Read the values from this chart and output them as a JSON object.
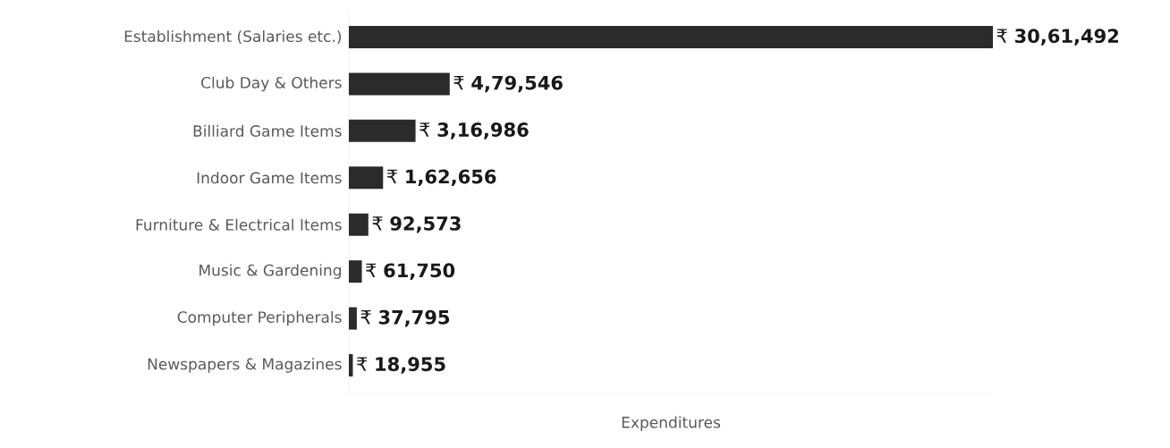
{
  "chart_data": {
    "type": "bar",
    "orientation": "horizontal",
    "xlabel": "Expenditures",
    "color": "#2b2b2b",
    "categories": [
      "Establishment (Salaries etc.)",
      "Club Day & Others",
      "Billiard Game Items",
      "Indoor Game Items",
      "Furniture & Electrical Items",
      "Music & Gardening",
      "Computer Peripherals",
      "Newspapers & Magazines"
    ],
    "values": [
      3061492,
      479546,
      316986,
      162656,
      92573,
      61750,
      37795,
      18955
    ],
    "value_labels": [
      "₹ **30,61,492**",
      "₹ **4,79,546**",
      "₹ **3,16,986**",
      "₹ **1,62,656**",
      "₹ **92,573**",
      "₹ **61,750**",
      "₹ **37,795**",
      "₹ **18,955**"
    ]
  }
}
